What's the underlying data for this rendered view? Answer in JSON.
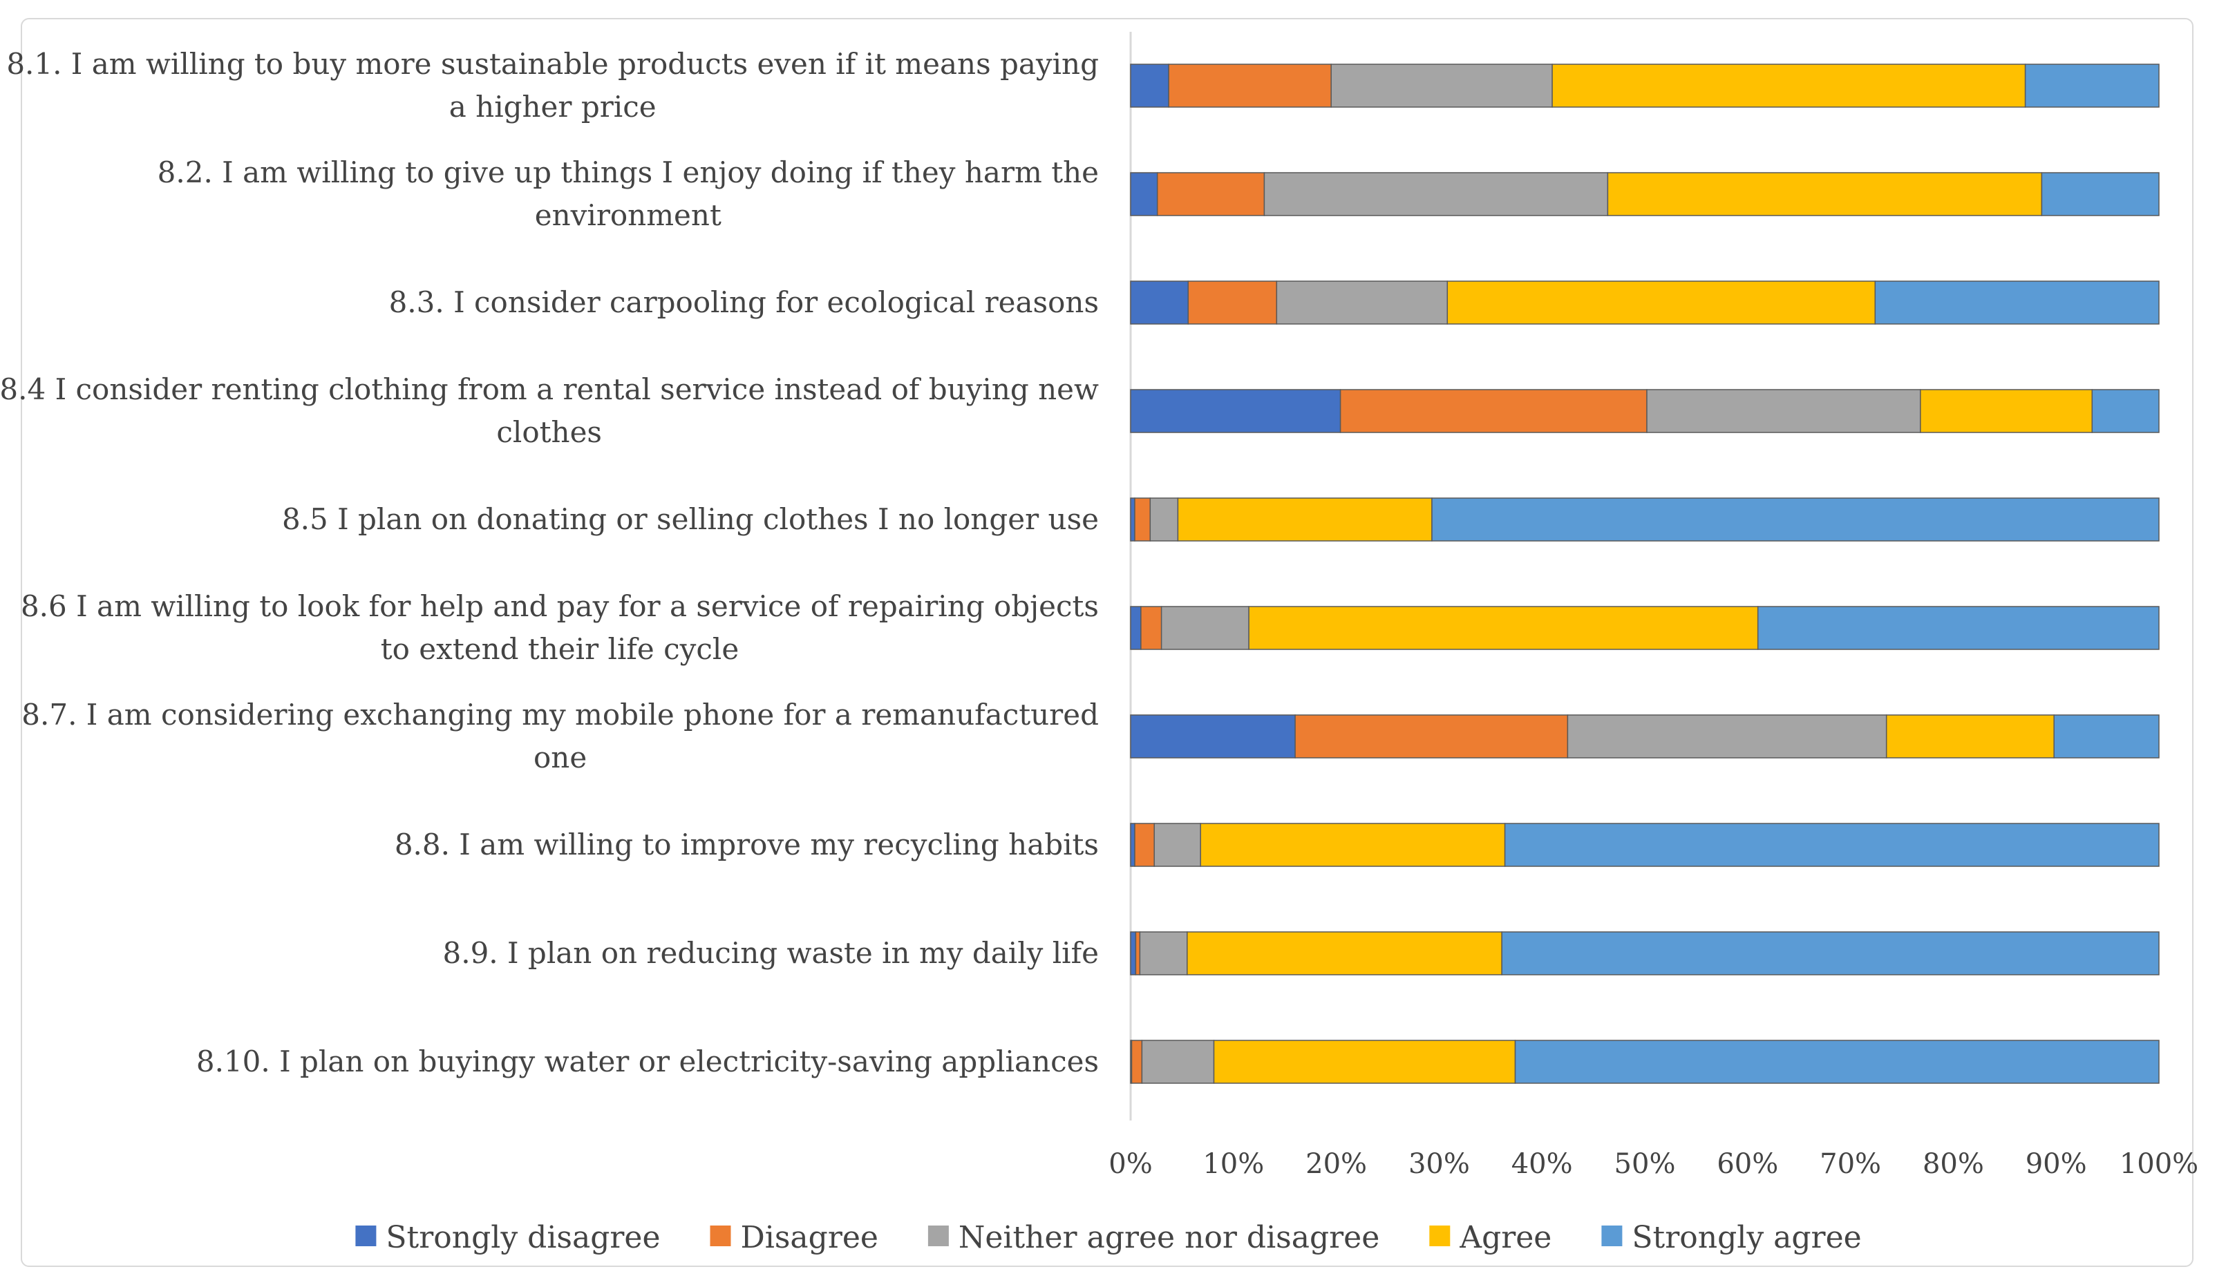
{
  "chart_data": {
    "type": "bar",
    "orientation": "horizontal",
    "stacked": "100%",
    "title": "",
    "xlabel": "",
    "ylabel": "",
    "xlim": [
      0,
      100
    ],
    "x_tick_labels": [
      "0%",
      "10%",
      "20%",
      "30%",
      "40%",
      "50%",
      "60%",
      "70%",
      "80%",
      "90%",
      "100%"
    ],
    "legend_position": "bottom",
    "categories": [
      {
        "lines": [
          "8.1. I am willing to buy more sustainable products even if it means paying",
          "a higher price"
        ]
      },
      {
        "lines": [
          "8.2. I am willing to give up things I enjoy doing if they harm the",
          "environment"
        ]
      },
      {
        "lines": [
          "8.3. I consider carpooling for ecological reasons"
        ]
      },
      {
        "lines": [
          "8.4 I consider renting clothing from a rental service instead of buying new",
          "clothes"
        ]
      },
      {
        "lines": [
          "8.5 I plan on donating or selling clothes I no longer use"
        ]
      },
      {
        "lines": [
          "8.6 I am willing to look for help and pay for a service of repairing objects",
          "to extend their life cycle"
        ]
      },
      {
        "lines": [
          "8.7. I am considering exchanging my mobile phone for a remanufactured",
          "one"
        ]
      },
      {
        "lines": [
          "8.8. I am willing to improve my recycling habits"
        ]
      },
      {
        "lines": [
          "8.9. I plan on reducing waste in my daily life"
        ]
      },
      {
        "lines": [
          "8.10. I plan on buyingy water or electricity-saving appliances"
        ]
      }
    ],
    "series": [
      {
        "name": "Strongly disagree",
        "color": "#4472C4",
        "values": [
          3.7,
          2.6,
          5.6,
          20.4,
          0.4,
          1.0,
          16.0,
          0.4,
          0.5,
          0.1
        ]
      },
      {
        "name": "Disagree",
        "color": "#ED7D31",
        "values": [
          15.8,
          10.4,
          8.6,
          29.8,
          1.5,
          2.0,
          26.5,
          1.9,
          0.4,
          1.0
        ]
      },
      {
        "name": "Neither agree nor disagree",
        "color": "#A5A5A5",
        "values": [
          21.5,
          33.4,
          16.6,
          26.6,
          2.7,
          8.5,
          31.0,
          4.5,
          4.6,
          7.0
        ]
      },
      {
        "name": "Agree",
        "color": "#FFC000",
        "values": [
          46.0,
          42.2,
          41.6,
          16.7,
          24.7,
          49.5,
          16.3,
          29.6,
          30.6,
          29.3
        ]
      },
      {
        "name": "Strongly agree",
        "color": "#5B9BD5",
        "values": [
          13.0,
          11.4,
          27.6,
          6.5,
          70.7,
          39.0,
          10.2,
          63.6,
          63.9,
          62.6
        ]
      }
    ]
  }
}
